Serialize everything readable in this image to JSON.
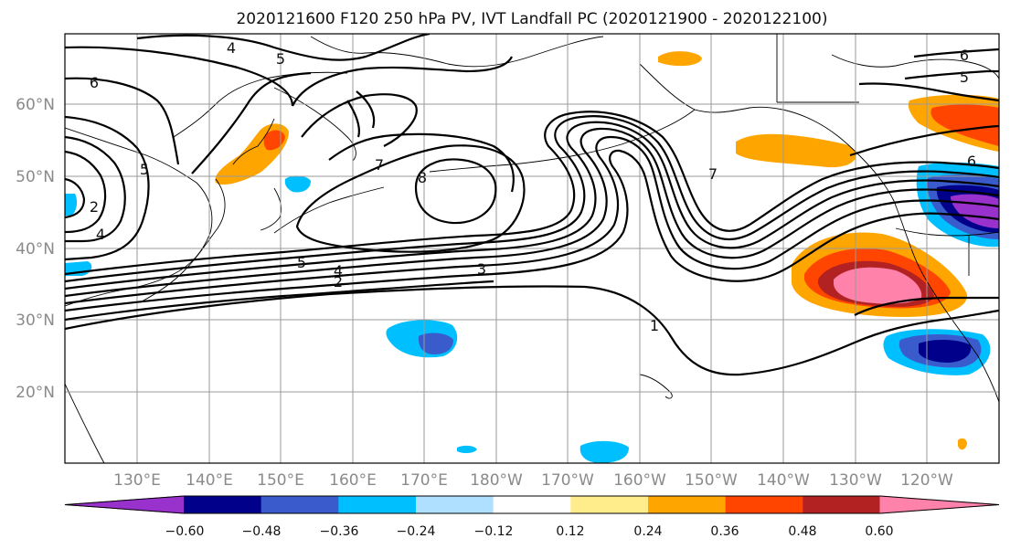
{
  "title": "2020121600 F120 250 hPa PV, IVT Landfall PC (2020121900 - 2020122100)",
  "lat_labels": [
    "60°N",
    "50°N",
    "40°N",
    "30°N",
    "20°N"
  ],
  "lon_labels": [
    "130°E",
    "140°E",
    "150°E",
    "160°E",
    "170°E",
    "180°W",
    "170°W",
    "160°W",
    "150°W",
    "140°W",
    "130°W",
    "120°W"
  ],
  "colorbar": {
    "ticks": [
      "−0.60",
      "−0.48",
      "−0.36",
      "−0.24",
      "−0.12",
      "0.12",
      "0.24",
      "0.36",
      "0.48",
      "0.60"
    ],
    "colors": [
      "#9932cc",
      "#00008b",
      "#3a5bcc",
      "#00bfff",
      "#b0e0ff",
      "#ffffff",
      "#ffec8b",
      "#ffa500",
      "#ff4500",
      "#b22222",
      "#ff82ab"
    ]
  },
  "contour_labels": [
    {
      "text": "4"
    },
    {
      "text": "5"
    },
    {
      "text": "6"
    },
    {
      "text": "7"
    },
    {
      "text": "8"
    },
    {
      "text": "5"
    },
    {
      "text": "4"
    },
    {
      "text": "3"
    },
    {
      "text": "2"
    },
    {
      "text": "1"
    },
    {
      "text": "7"
    },
    {
      "text": "6"
    },
    {
      "text": "5"
    },
    {
      "text": "4"
    },
    {
      "text": "2"
    },
    {
      "text": "5"
    },
    {
      "text": "6"
    }
  ]
}
